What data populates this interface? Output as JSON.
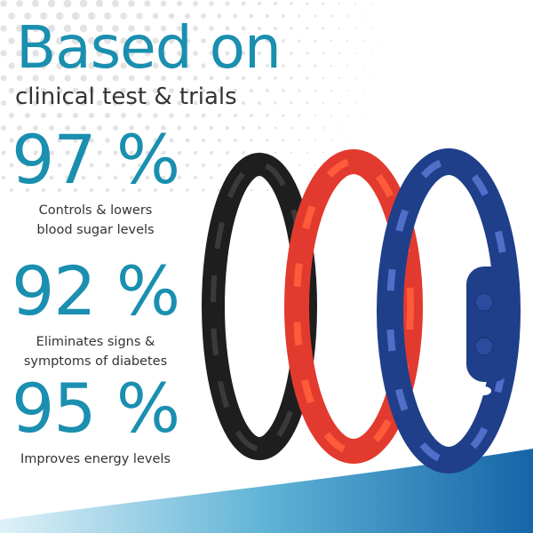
{
  "header": {
    "title": "Based on",
    "subtitle": "clinical test & trials"
  },
  "stats": [
    {
      "value": "97 %",
      "caption_lines": [
        "Controls & lowers",
        "blood sugar levels"
      ]
    },
    {
      "value": "92 %",
      "caption_lines": [
        "Eliminates signs &",
        "symptoms of diabetes"
      ]
    },
    {
      "value": "95 %",
      "caption_lines": [
        "Improves energy levels"
      ]
    }
  ],
  "product": {
    "bracelet_colors": [
      "#2a2a2a",
      "#e23a2e",
      "#1f3f8a"
    ]
  },
  "colors": {
    "accent": "#1a8fb0",
    "text": "#333333",
    "wave": "#1a7fb5"
  }
}
